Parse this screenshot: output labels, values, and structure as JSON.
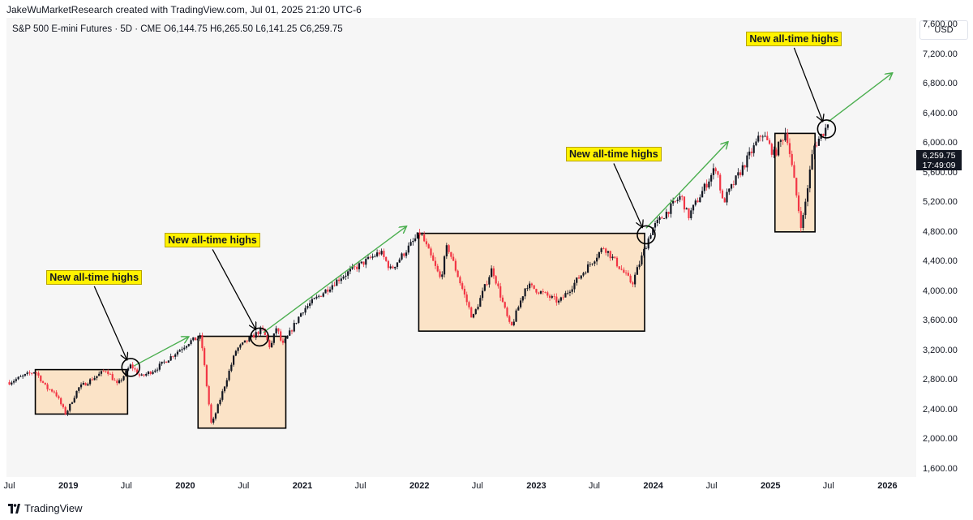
{
  "attribution": "JakeWuMarketResearch created with TradingView.com, Jul 01, 2025 21:20 UTC-6",
  "symbol_line": "S&P 500 E-mini Futures · 5D · CME  O6,144.75  H6,265.50  L6,141.25  C6,259.75",
  "currency": "USD",
  "last_price": "6,259.75",
  "countdown": "17:49:09",
  "footer_brand": "TradingView",
  "colors": {
    "up": "#131722",
    "down": "#f23645",
    "arrow": "#4caf50",
    "box_fill": "#fbe3c7",
    "label_fill": "#fff200"
  },
  "annotations": {
    "label": "New all-time highs",
    "events": [
      {
        "date": "2019-07-15",
        "price": 2980
      },
      {
        "date": "2020-08-20",
        "price": 3390
      },
      {
        "date": "2023-12-10",
        "price": 4770
      },
      {
        "date": "2025-06-25",
        "price": 6200
      }
    ],
    "ranges": [
      {
        "x0": "2018-09-20",
        "x1": "2019-07-05",
        "y0": 2350,
        "y1": 2950
      },
      {
        "x0": "2020-02-10",
        "x1": "2020-11-10",
        "y0": 2160,
        "y1": 3400
      },
      {
        "x0": "2021-12-30",
        "x1": "2023-12-05",
        "y0": 3470,
        "y1": 4790
      },
      {
        "x0": "2025-01-15",
        "x1": "2025-05-20",
        "y0": 4810,
        "y1": 6140
      }
    ],
    "trend_arrows": [
      {
        "from": [
          "2019-07-25",
          3000
        ],
        "to": [
          "2020-01-10",
          3390
        ]
      },
      {
        "from": [
          "2020-09-01",
          3450
        ],
        "to": [
          "2021-11-20",
          4880
        ]
      },
      {
        "from": [
          "2023-12-10",
          4860
        ],
        "to": [
          "2024-08-20",
          6020
        ]
      },
      {
        "from": [
          "2025-07-01",
          6300
        ],
        "to": [
          "2026-01-15",
          6950
        ]
      }
    ]
  },
  "chart_data": {
    "type": "candlestick",
    "interval": "5D",
    "y_ticks": [
      "1,600.00",
      "2,000.00",
      "2,400.00",
      "2,800.00",
      "3,200.00",
      "3,600.00",
      "4,000.00",
      "4,400.00",
      "4,800.00",
      "5,200.00",
      "5,600.00",
      "6,000.00",
      "6,400.00",
      "6,800.00",
      "7,200.00",
      "7,600.00"
    ],
    "x_ticks": [
      {
        "label": "Jul",
        "date": "2018-07-01",
        "year": false
      },
      {
        "label": "2019",
        "date": "2019-01-01",
        "year": true
      },
      {
        "label": "Jul",
        "date": "2019-07-01",
        "year": false
      },
      {
        "label": "2020",
        "date": "2020-01-01",
        "year": true
      },
      {
        "label": "Jul",
        "date": "2020-07-01",
        "year": false
      },
      {
        "label": "2021",
        "date": "2021-01-01",
        "year": true
      },
      {
        "label": "Jul",
        "date": "2021-07-01",
        "year": false
      },
      {
        "label": "2022",
        "date": "2022-01-01",
        "year": true
      },
      {
        "label": "Jul",
        "date": "2022-07-01",
        "year": false
      },
      {
        "label": "2023",
        "date": "2023-01-01",
        "year": true
      },
      {
        "label": "Jul",
        "date": "2023-07-01",
        "year": false
      },
      {
        "label": "2024",
        "date": "2024-01-01",
        "year": true
      },
      {
        "label": "Jul",
        "date": "2024-07-01",
        "year": false
      },
      {
        "label": "2025",
        "date": "2025-01-01",
        "year": true
      },
      {
        "label": "Jul",
        "date": "2025-07-01",
        "year": false
      },
      {
        "label": "2026",
        "date": "2026-01-01",
        "year": true
      }
    ],
    "x_range": [
      "2018-06-22",
      "2026-04-01"
    ],
    "y_range": [
      1500,
      7700
    ],
    "price_path": [
      [
        "2018-07-01",
        2780
      ],
      [
        "2018-09-20",
        2930
      ],
      [
        "2018-10-25",
        2700
      ],
      [
        "2018-11-20",
        2650
      ],
      [
        "2018-12-24",
        2350
      ],
      [
        "2019-02-01",
        2700
      ],
      [
        "2019-04-30",
        2950
      ],
      [
        "2019-06-03",
        2740
      ],
      [
        "2019-07-15",
        3010
      ],
      [
        "2019-08-15",
        2850
      ],
      [
        "2019-10-01",
        2960
      ],
      [
        "2020-01-15",
        3330
      ],
      [
        "2020-02-19",
        3390
      ],
      [
        "2020-03-23",
        2190
      ],
      [
        "2020-06-08",
        3220
      ],
      [
        "2020-08-28",
        3500
      ],
      [
        "2020-09-23",
        3240
      ],
      [
        "2020-10-12",
        3530
      ],
      [
        "2020-10-30",
        3270
      ],
      [
        "2021-01-01",
        3750
      ],
      [
        "2021-05-01",
        4200
      ],
      [
        "2021-09-01",
        4540
      ],
      [
        "2021-10-04",
        4300
      ],
      [
        "2022-01-04",
        4800
      ],
      [
        "2022-03-08",
        4170
      ],
      [
        "2022-03-29",
        4630
      ],
      [
        "2022-06-16",
        3640
      ],
      [
        "2022-08-16",
        4320
      ],
      [
        "2022-10-13",
        3500
      ],
      [
        "2022-12-01",
        4100
      ],
      [
        "2023-03-13",
        3860
      ],
      [
        "2023-07-31",
        4610
      ],
      [
        "2023-10-27",
        4110
      ],
      [
        "2023-12-28",
        4850
      ],
      [
        "2024-03-28",
        5300
      ],
      [
        "2024-04-19",
        5010
      ],
      [
        "2024-07-16",
        5700
      ],
      [
        "2024-08-05",
        5200
      ],
      [
        "2024-12-06",
        6150
      ],
      [
        "2025-01-13",
        5850
      ],
      [
        "2025-02-19",
        6180
      ],
      [
        "2025-04-08",
        4860
      ],
      [
        "2025-05-15",
        5950
      ],
      [
        "2025-06-30",
        6260
      ]
    ],
    "last_close": 6259.75
  }
}
